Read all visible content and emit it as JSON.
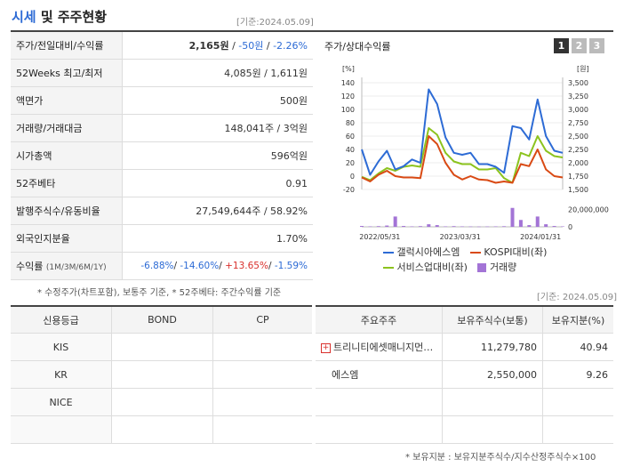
{
  "header": {
    "title_accent": "시세",
    "title_rest": " 및 주주현황",
    "base_date": "[기준:2024.05.09]"
  },
  "quote": {
    "rows": [
      {
        "label": "주가/전일대비/수익률",
        "price": "2,165원",
        "sep1": " / ",
        "change": "-50원",
        "sep2": " / ",
        "rate": "-2.26%"
      },
      {
        "label": "52Weeks 최고/최저",
        "value": "4,085원 / 1,611원"
      },
      {
        "label": "액면가",
        "value": "500원"
      },
      {
        "label": "거래량/거래대금",
        "value": "148,041주 / 3억원"
      },
      {
        "label": "시가총액",
        "value": "596억원"
      },
      {
        "label": "52주베타",
        "value": "0.91"
      },
      {
        "label": "발행주식수/유동비율",
        "value": "27,549,644주 / 58.92%"
      },
      {
        "label": "외국인지분율",
        "value": "1.70%"
      }
    ],
    "returns": {
      "label": "수익률",
      "label_small": "(1M/3M/6M/1Y)",
      "r1": "-6.88%",
      "r2": "-14.60%",
      "r3": "+13.65%",
      "r4": "-1.59%",
      "sep": "/ "
    },
    "footnote": "* 수정주가(차트포함), 보통주 기준, * 52주베타: 주간수익률 기준"
  },
  "chart": {
    "title": "주가/상대수익률",
    "buttons": [
      "1",
      "2",
      "3"
    ],
    "left_unit": "[%]",
    "right_unit": "[원]",
    "colors": {
      "samsung": "#2d6bd5",
      "kospi": "#d94a14",
      "service": "#8cc31e",
      "volume": "#a374d6"
    },
    "legend": {
      "s1": "갤럭시아에스엠",
      "s2": "KOSPI대비(좌)",
      "s3": "서비스업대비(좌)",
      "s4": "거래량"
    },
    "chart_data": {
      "type": "line",
      "x_ticks": [
        "2022/05/31",
        "2023/03/31",
        "2024/01/31"
      ],
      "left_axis": {
        "ticks": [
          "140",
          "120",
          "100",
          "80",
          "60",
          "40",
          "20",
          "0",
          "-20"
        ],
        "ylim": [
          -20,
          140
        ]
      },
      "right_axis": {
        "ticks": [
          "3,500",
          "3,250",
          "3,000",
          "2,750",
          "2,500",
          "2,250",
          "2,000",
          "1,750",
          "1,500"
        ],
        "ylim": [
          1500,
          3500
        ]
      },
      "volume_axis": {
        "ticks": [
          "20,000,000",
          "0"
        ],
        "ylim": [
          0,
          30000000
        ]
      },
      "series": [
        {
          "name": "갤럭시아에스엠",
          "color_key": "samsung",
          "values": [
            40,
            2,
            22,
            38,
            10,
            15,
            25,
            20,
            130,
            108,
            58,
            35,
            32,
            35,
            18,
            18,
            14,
            5,
            75,
            72,
            55,
            115,
            60,
            38,
            35
          ]
        },
        {
          "name": "KOSPI대비(좌)",
          "color_key": "kospi",
          "values": [
            -2,
            -8,
            2,
            8,
            0,
            -2,
            -2,
            -3,
            60,
            48,
            20,
            2,
            -5,
            0,
            -5,
            -6,
            -10,
            -8,
            -10,
            18,
            15,
            40,
            10,
            0,
            -2
          ]
        },
        {
          "name": "서비스업대비(좌)",
          "color_key": "service",
          "values": [
            -1,
            -6,
            4,
            12,
            8,
            14,
            16,
            14,
            72,
            62,
            35,
            22,
            18,
            18,
            10,
            10,
            12,
            -3,
            -10,
            35,
            30,
            60,
            38,
            30,
            28
          ]
        }
      ],
      "volume": [
        1000000,
        500000,
        800000,
        1500000,
        12000000,
        1000000,
        500000,
        800000,
        3000000,
        2000000,
        500000,
        800000,
        500000,
        400000,
        300000,
        400000,
        500000,
        700000,
        22000000,
        8000000,
        2000000,
        12000000,
        3000000,
        1000000,
        500000
      ]
    }
  },
  "credit": {
    "headers": [
      "신용등급",
      "BOND",
      "CP"
    ],
    "rows": [
      [
        "KIS",
        "",
        ""
      ],
      [
        "KR",
        "",
        ""
      ],
      [
        "NICE",
        "",
        ""
      ],
      [
        "",
        "",
        ""
      ]
    ]
  },
  "holders": {
    "base_date": "[기준: 2024.05.09]",
    "headers": [
      "주요주주",
      "보유주식수(보통)",
      "보유지분(%)"
    ],
    "rows": [
      {
        "name": "트리니티에셋매니지먼…",
        "shares": "11,279,780",
        "pct": "40.94"
      },
      {
        "name": "에스엠",
        "shares": "2,550,000",
        "pct": "9.26"
      },
      {
        "name": "",
        "shares": "",
        "pct": ""
      },
      {
        "name": "",
        "shares": "",
        "pct": ""
      }
    ],
    "footnote": "* 보유지분 : 보유지분주식수/지수산정주식수×100"
  }
}
